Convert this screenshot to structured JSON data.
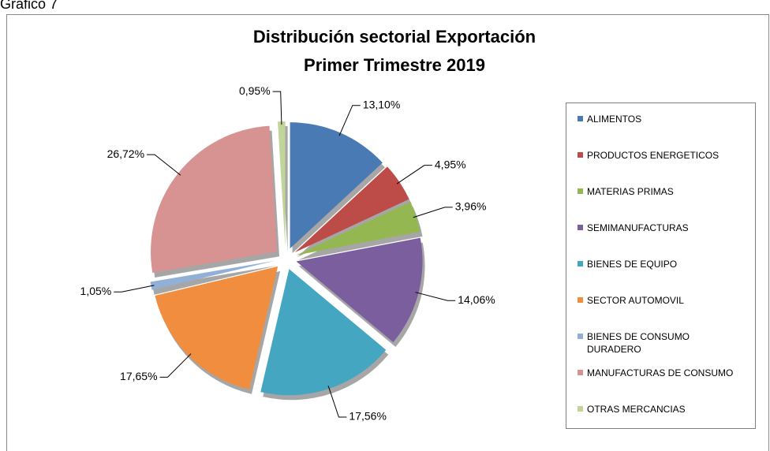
{
  "chart_data": {
    "type": "pie",
    "caption": "Gráfico 7",
    "title": "Distribución sectorial Exportación",
    "subtitle": "Primer Trimestre 2019",
    "categories": [
      "ALIMENTOS",
      "PRODUCTOS ENERGETICOS",
      "MATERIAS PRIMAS",
      "SEMIMANUFACTURAS",
      "BIENES DE EQUIPO",
      "SECTOR AUTOMOVIL",
      "BIENES DE CONSUMO DURADERO",
      "MANUFACTURAS DE CONSUMO",
      "OTRAS MERCANCIAS"
    ],
    "values": [
      13.1,
      4.95,
      3.96,
      14.06,
      17.56,
      17.65,
      1.05,
      26.72,
      0.95
    ],
    "value_labels": [
      "13,10%",
      "4,95%",
      "3,96%",
      "14,06%",
      "17,56%",
      "17,65%",
      "1,05%",
      "26,72%",
      "0,95%"
    ],
    "colors": [
      "#4a7ab4",
      "#bd4b48",
      "#95b752",
      "#7b5e9e",
      "#44a6c0",
      "#f08d3f",
      "#92b0d6",
      "#d79391",
      "#c1d59a"
    ],
    "legend": "right"
  }
}
